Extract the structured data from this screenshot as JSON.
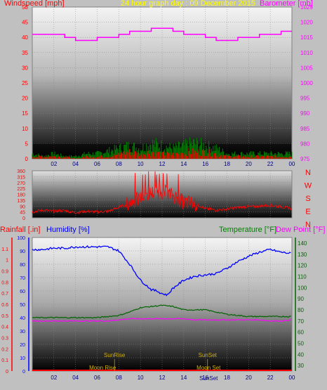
{
  "header": {
    "left_title": "Windspeed [mph]",
    "center_title": "24 hour graph day : 09 December 2015",
    "right_title": "Barometer [mb]"
  },
  "colors": {
    "background": "#c0c0c0",
    "wind": "#ff0000",
    "gust": "#008000",
    "barometer": "#ff00ff",
    "direction": "#ff0000",
    "humidity": "#0000ff",
    "temperature": "#006400",
    "dew_point": "#ff00ff",
    "rainfall": "#ff0000",
    "sun_moon": "#d4b000",
    "title": "#ffff00"
  },
  "chart_data": [
    {
      "id": "wind_baro",
      "type": "line",
      "left_axis": {
        "label": "Windspeed [mph]",
        "ticks": [
          0,
          5,
          10,
          15,
          20,
          25,
          30,
          35,
          40,
          45,
          50
        ],
        "range": [
          0,
          50
        ]
      },
      "right_axis": {
        "label": "Barometer [mb]",
        "ticks": [
          975,
          980,
          985,
          990,
          995,
          1000,
          1005,
          1010,
          1015,
          1020,
          1025
        ],
        "range": [
          975,
          1025
        ]
      },
      "x_ticks": [
        "02",
        "04",
        "06",
        "08",
        "10",
        "12",
        "14",
        "16",
        "18",
        "20",
        "22",
        "00"
      ],
      "series": [
        {
          "name": "Barometer",
          "axis": "right",
          "x": [
            0,
            2,
            3,
            4,
            5,
            6,
            7,
            8,
            9,
            10,
            11,
            12,
            13,
            14,
            15,
            16,
            17,
            18,
            19,
            20,
            21,
            22,
            23,
            24
          ],
          "y": [
            1016,
            1016,
            1015,
            1014,
            1014,
            1015,
            1015,
            1016,
            1017,
            1017,
            1018,
            1018,
            1017,
            1016,
            1016,
            1015,
            1014,
            1014,
            1015,
            1015,
            1016,
            1016,
            1017,
            1017
          ]
        },
        {
          "name": "Wind Speed",
          "axis": "left",
          "x": [
            0,
            1,
            2,
            3,
            4,
            5,
            6,
            7,
            8,
            9,
            10,
            11,
            12,
            13,
            14,
            15,
            16,
            17,
            18,
            19,
            20,
            21,
            22,
            23,
            24
          ],
          "y": [
            1,
            1,
            1,
            1,
            0,
            1,
            1,
            1,
            2,
            3,
            2,
            3,
            2,
            2,
            3,
            3,
            3,
            2,
            1,
            1,
            1,
            1,
            1,
            1,
            1
          ]
        },
        {
          "name": "Wind Gust",
          "axis": "left",
          "x": [
            0,
            1,
            2,
            3,
            4,
            5,
            6,
            7,
            8,
            9,
            10,
            11,
            12,
            13,
            14,
            15,
            16,
            17,
            18,
            19,
            20,
            21,
            22,
            23,
            24
          ],
          "y": [
            2,
            1,
            2,
            1,
            1,
            2,
            2,
            3,
            4,
            5,
            4,
            6,
            5,
            4,
            5,
            6,
            5,
            4,
            2,
            2,
            2,
            2,
            2,
            2,
            2
          ]
        }
      ]
    },
    {
      "id": "direction",
      "type": "line",
      "left_axis": {
        "ticks": [
          0,
          45,
          90,
          135,
          180,
          225,
          270,
          315,
          360
        ],
        "range": [
          0,
          360
        ]
      },
      "right_labels": [
        "N",
        "W",
        "S",
        "E",
        "N"
      ],
      "series": [
        {
          "name": "Wind Direction",
          "x": [
            0,
            1,
            2,
            3,
            4,
            5,
            6,
            7,
            8,
            9,
            10,
            11,
            12,
            13,
            14,
            15,
            16,
            17,
            18,
            19,
            20,
            21,
            22,
            23,
            24
          ],
          "y": [
            45,
            60,
            50,
            55,
            40,
            50,
            45,
            50,
            80,
            110,
            150,
            190,
            200,
            170,
            120,
            110,
            70,
            60,
            65,
            80,
            85,
            90,
            95,
            85,
            70
          ]
        }
      ]
    },
    {
      "id": "temp_hum_rain",
      "type": "line",
      "rain_axis": {
        "label": "Rainfall [.in]",
        "ticks": [
          0,
          0.1,
          0.2,
          0.3,
          0.4,
          0.5,
          0.6,
          0.7,
          0.8,
          0.9,
          1,
          1.1
        ],
        "range": [
          0,
          1.2
        ]
      },
      "humidity_axis": {
        "label": "Humidity [%]",
        "ticks": [
          0,
          10,
          20,
          30,
          40,
          50,
          60,
          70,
          80,
          90,
          100
        ],
        "range": [
          0,
          100
        ]
      },
      "temp_axis": {
        "label": "Temperature [°F]",
        "ticks": [
          30,
          40,
          50,
          60,
          70,
          80,
          90,
          100,
          110,
          120,
          130,
          140
        ],
        "range": [
          25,
          145
        ]
      },
      "dew_label": "Dew Point [°F]",
      "x_ticks": [
        "02",
        "04",
        "06",
        "08",
        "10",
        "12",
        "14",
        "16",
        "18",
        "20",
        "22",
        "00"
      ],
      "events": [
        {
          "label": "SunRise",
          "x": 7.6,
          "row": "upper"
        },
        {
          "label": "SunSet",
          "x": 16.2,
          "row": "upper"
        },
        {
          "label": "Moon Rise",
          "x": 6.5,
          "row": "lower"
        },
        {
          "label": "Moon Set",
          "x": 16.3,
          "row": "lower"
        },
        {
          "label": "SunSet",
          "x": 16.3,
          "row": "bottom"
        }
      ],
      "series": [
        {
          "name": "Humidity",
          "axis": "humidity",
          "x": [
            0,
            1,
            2,
            3,
            4,
            5,
            6,
            7,
            8,
            9,
            10,
            11,
            11.5,
            12,
            12.5,
            13,
            14,
            15,
            16,
            17,
            18,
            19,
            20,
            21,
            22,
            23,
            24
          ],
          "y": [
            91,
            91,
            92,
            92,
            93,
            93,
            93,
            93,
            90,
            80,
            68,
            61,
            60,
            58,
            57,
            62,
            68,
            71,
            72,
            73,
            77,
            82,
            86,
            89,
            91,
            89,
            88
          ]
        },
        {
          "name": "Temperature",
          "axis": "temp",
          "x": [
            0,
            1,
            2,
            3,
            4,
            5,
            6,
            7,
            8,
            9,
            10,
            11,
            12,
            13,
            14,
            15,
            16,
            17,
            18,
            19,
            20,
            21,
            22,
            23,
            24
          ],
          "y": [
            73,
            73,
            73,
            73,
            73,
            73,
            73,
            74,
            75,
            78,
            82,
            83,
            84,
            83,
            80,
            80,
            80,
            78,
            76,
            75,
            74,
            74,
            74,
            74,
            74
          ]
        },
        {
          "name": "Dew Point",
          "axis": "temp",
          "x": [
            0,
            1,
            2,
            3,
            4,
            5,
            6,
            7,
            8,
            9,
            10,
            11,
            12,
            13,
            14,
            15,
            16,
            17,
            18,
            19,
            20,
            21,
            22,
            23,
            24
          ],
          "y": [
            70,
            70,
            70,
            70,
            70,
            70,
            70,
            70,
            71,
            72,
            72,
            72,
            72,
            72,
            72,
            71,
            71,
            71,
            71,
            71,
            71,
            71,
            70,
            70,
            71
          ]
        },
        {
          "name": "Rainfall",
          "axis": "rain",
          "x": [
            0,
            24
          ],
          "y": [
            0,
            0
          ]
        }
      ]
    }
  ]
}
